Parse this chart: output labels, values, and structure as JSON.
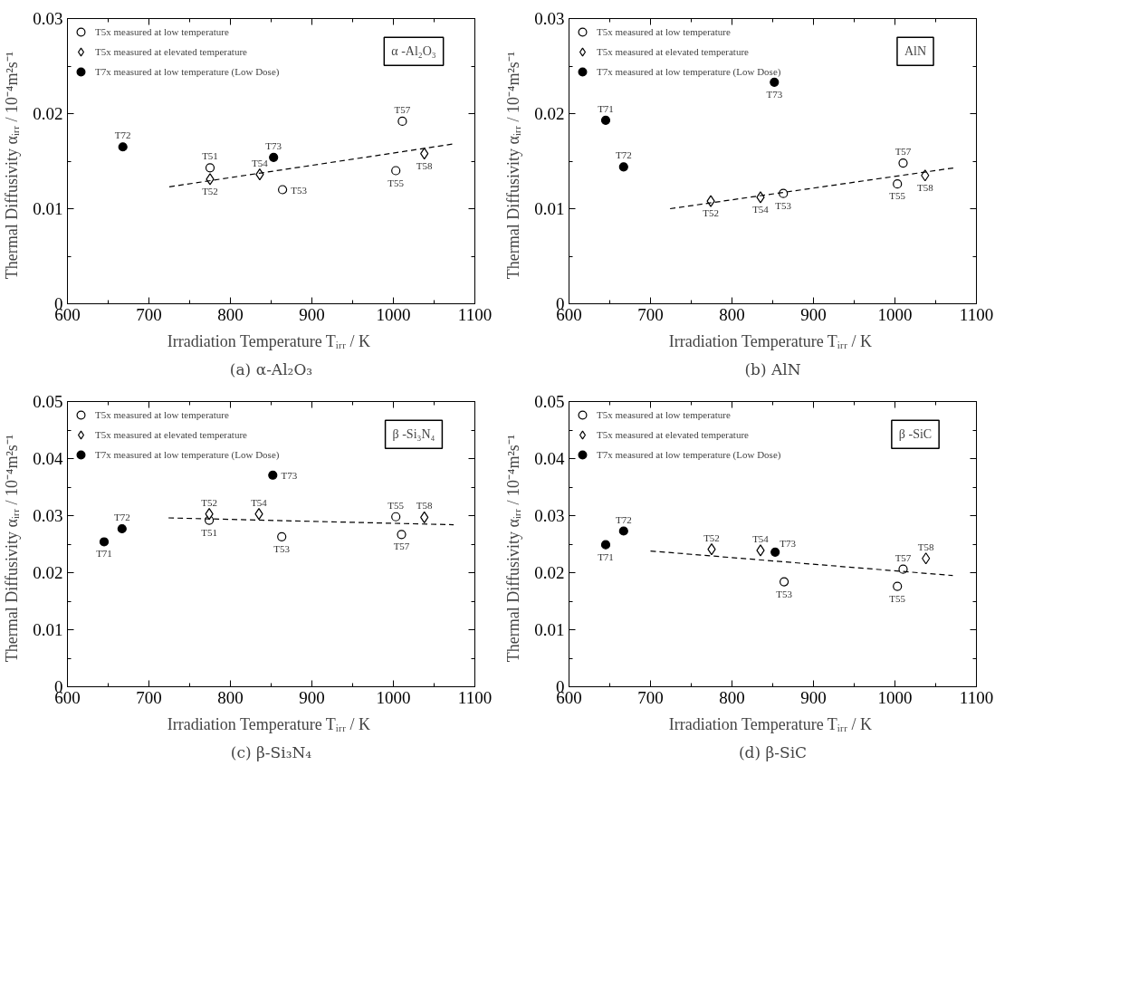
{
  "chart_data": [
    {
      "type": "scatter",
      "title": "(a) α-Al₂O₃",
      "xlabel": "Irradiation Temperature  Tᵢᵣᵣ / K",
      "ylabel": "Thermal Diffusivity  αᵢᵣᵣ  / 10⁻⁴m²s⁻¹",
      "xlim": [
        600,
        1100
      ],
      "ylim": [
        0,
        0.03
      ],
      "xticks": [
        600,
        {
          "value": 650,
          "label": null
        },
        700,
        {
          "value": 750,
          "label": null
        },
        800,
        {
          "value": 850,
          "label": null
        },
        900,
        {
          "value": 950,
          "label": null
        },
        1000,
        {
          "value": 1050,
          "label": null
        },
        1100
      ],
      "yticks": [
        0,
        {
          "value": 0.005,
          "label": null
        },
        0.01,
        {
          "value": 0.015,
          "label": null
        },
        0.02,
        {
          "value": 0.025,
          "label": null
        },
        0.03
      ],
      "legend": "top left",
      "series": [
        {
          "name": "T5x measured at low temperature",
          "color": "#ffffff",
          "marker": "circle",
          "x": [
            775,
            864,
            1003,
            1011
          ],
          "values": [
            0.0143,
            0.012,
            0.014,
            0.0192
          ]
        },
        {
          "name": "T5x measured at elevated temperature",
          "color": "#ffffff",
          "marker": "diamond",
          "x": [
            775,
            836,
            1038
          ],
          "values": [
            0.0131,
            0.0136,
            0.0158
          ]
        },
        {
          "name": "T7x measured at low temperature (Low Dose)",
          "color": "#000000",
          "marker": "circle",
          "x": [
            668,
            853
          ],
          "values": [
            0.0165,
            0.0154
          ]
        },
        {
          "type": "line",
          "color": "#000000",
          "line_style": "dashed",
          "marker": "none",
          "x": [
            725,
            1073
          ],
          "values": [
            0.0123,
            0.0168
          ]
        }
      ],
      "annotations": [
        "α -Al₂O₃",
        {
          "text": "T51",
          "x": 775,
          "y": 0.0143
        },
        {
          "text": "T53",
          "x": 864,
          "y": 0.012
        },
        {
          "text": "T55",
          "x": 1003,
          "y": 0.014
        },
        {
          "text": "T57",
          "x": 1011,
          "y": 0.0192
        },
        {
          "text": "T52",
          "x": 775,
          "y": 0.0131
        },
        {
          "text": "T54",
          "x": 836,
          "y": 0.0136
        },
        {
          "text": "T58",
          "x": 1038,
          "y": 0.0158
        },
        {
          "text": "T72",
          "x": 668,
          "y": 0.0165
        },
        {
          "text": "T73",
          "x": 853,
          "y": 0.0154
        }
      ]
    },
    {
      "type": "scatter",
      "title": "(b) AlN",
      "xlabel": "Irradiation Temperature  Tᵢᵣᵣ / K",
      "ylabel": "Thermal Diffusivity  αᵢᵣᵣ  / 10⁻⁴m²s⁻¹",
      "xlim": [
        600,
        1100
      ],
      "ylim": [
        0,
        0.03
      ],
      "xticks": [
        600,
        {
          "value": 650,
          "label": null
        },
        700,
        {
          "value": 750,
          "label": null
        },
        800,
        {
          "value": 850,
          "label": null
        },
        900,
        {
          "value": 950,
          "label": null
        },
        1000,
        {
          "value": 1050,
          "label": null
        },
        1100
      ],
      "yticks": [
        0,
        {
          "value": 0.005,
          "label": null
        },
        0.01,
        {
          "value": 0.015,
          "label": null
        },
        0.02,
        {
          "value": 0.025,
          "label": null
        },
        0.03
      ],
      "legend": "top left",
      "series": [
        {
          "name": "T5x measured at low temperature",
          "color": "#ffffff",
          "marker": "circle",
          "x": [
            863,
            1003,
            1010
          ],
          "values": [
            0.0116,
            0.0126,
            0.0148
          ]
        },
        {
          "name": "T5x measured at elevated temperature",
          "color": "#ffffff",
          "marker": "diamond",
          "x": [
            774,
            835,
            1037
          ],
          "values": [
            0.0108,
            0.0112,
            0.0135
          ]
        },
        {
          "name": "T7x measured at low temperature (Low Dose)",
          "color": "#000000",
          "marker": "circle",
          "x": [
            645,
            667,
            852
          ],
          "values": [
            0.0193,
            0.0144,
            0.0233
          ]
        },
        {
          "type": "line",
          "color": "#000000",
          "line_style": "dashed",
          "marker": "none",
          "x": [
            724,
            1073
          ],
          "values": [
            0.01,
            0.0143
          ]
        }
      ],
      "annotations": [
        "AlN",
        {
          "text": "T53",
          "x": 863,
          "y": 0.0116
        },
        {
          "text": "T55",
          "x": 1003,
          "y": 0.0126
        },
        {
          "text": "T57",
          "x": 1010,
          "y": 0.0148
        },
        {
          "text": "T52",
          "x": 774,
          "y": 0.0108
        },
        {
          "text": "T54",
          "x": 835,
          "y": 0.0112
        },
        {
          "text": "T58",
          "x": 1037,
          "y": 0.0135
        },
        {
          "text": "T71",
          "x": 645,
          "y": 0.0193
        },
        {
          "text": "T72",
          "x": 667,
          "y": 0.0144
        },
        {
          "text": "T73",
          "x": 852,
          "y": 0.0233
        }
      ]
    },
    {
      "type": "scatter",
      "title": "(c) β-Si₃N₄",
      "xlabel": "Irradiation Temperature  Tᵢᵣᵣ / K",
      "ylabel": "Thermal Diffusivity  αᵢᵣᵣ  / 10⁻⁴m²s⁻¹",
      "xlim": [
        600,
        1100
      ],
      "ylim": [
        0,
        0.05
      ],
      "xticks": [
        600,
        {
          "value": 650,
          "label": null
        },
        700,
        {
          "value": 750,
          "label": null
        },
        800,
        {
          "value": 850,
          "label": null
        },
        900,
        {
          "value": 950,
          "label": null
        },
        1000,
        {
          "value": 1050,
          "label": null
        },
        1100
      ],
      "yticks": [
        0,
        {
          "value": 0.005,
          "label": null
        },
        0.01,
        {
          "value": 0.015,
          "label": null
        },
        0.02,
        {
          "value": 0.025,
          "label": null
        },
        0.03,
        {
          "value": 0.035,
          "label": null
        },
        0.04,
        {
          "value": 0.045,
          "label": null
        },
        0.05
      ],
      "legend": "top left",
      "series": [
        {
          "name": "T5x measured at low temperature",
          "color": "#ffffff",
          "marker": "circle",
          "x": [
            774,
            863,
            1003,
            1010
          ],
          "values": [
            0.0292,
            0.0263,
            0.0298,
            0.0267
          ]
        },
        {
          "name": "T5x measured at elevated temperature",
          "color": "#ffffff",
          "marker": "diamond",
          "x": [
            774,
            835,
            1038
          ],
          "values": [
            0.0303,
            0.0303,
            0.0297
          ]
        },
        {
          "name": "T7x measured at low temperature (Low Dose)",
          "color": "#000000",
          "marker": "circle",
          "x": [
            645,
            667,
            852
          ],
          "values": [
            0.0254,
            0.0277,
            0.0371
          ]
        },
        {
          "type": "line",
          "color": "#000000",
          "line_style": "dashed",
          "marker": "none",
          "x": [
            724,
            1074
          ],
          "values": [
            0.0296,
            0.0284
          ]
        }
      ],
      "annotations": [
        "β -Si₃N₄",
        {
          "text": "T51",
          "x": 774,
          "y": 0.0292
        },
        {
          "text": "T53",
          "x": 863,
          "y": 0.0263
        },
        {
          "text": "T55",
          "x": 1003,
          "y": 0.0298
        },
        {
          "text": "T57",
          "x": 1010,
          "y": 0.0267
        },
        {
          "text": "T52",
          "x": 774,
          "y": 0.0303
        },
        {
          "text": "T54",
          "x": 835,
          "y": 0.0303
        },
        {
          "text": "T58",
          "x": 1038,
          "y": 0.0297
        },
        {
          "text": "T71",
          "x": 645,
          "y": 0.0254
        },
        {
          "text": "T72",
          "x": 667,
          "y": 0.0277
        },
        {
          "text": "T73",
          "x": 852,
          "y": 0.0371
        }
      ]
    },
    {
      "type": "scatter",
      "title": "(d) β-SiC",
      "xlabel": "Irradiation Temperature  Tᵢᵣᵣ / K",
      "ylabel": "Thermal Diffusivity  αᵢᵣᵣ  / 10⁻⁴m²s⁻¹",
      "xlim": [
        600,
        1100
      ],
      "ylim": [
        0,
        0.05
      ],
      "xticks": [
        600,
        {
          "value": 650,
          "label": null
        },
        700,
        {
          "value": 750,
          "label": null
        },
        800,
        {
          "value": 850,
          "label": null
        },
        900,
        {
          "value": 950,
          "label": null
        },
        1000,
        {
          "value": 1050,
          "label": null
        },
        1100
      ],
      "yticks": [
        0,
        {
          "value": 0.005,
          "label": null
        },
        0.01,
        {
          "value": 0.015,
          "label": null
        },
        0.02,
        {
          "value": 0.025,
          "label": null
        },
        0.03,
        {
          "value": 0.035,
          "label": null
        },
        0.04,
        {
          "value": 0.045,
          "label": null
        },
        0.05
      ],
      "legend": "top left",
      "series": [
        {
          "name": "T5x measured at low temperature",
          "color": "#ffffff",
          "marker": "circle",
          "x": [
            864,
            1003,
            1010
          ],
          "values": [
            0.0184,
            0.0176,
            0.0206
          ]
        },
        {
          "name": "T5x measured at elevated temperature",
          "color": "#ffffff",
          "marker": "diamond",
          "x": [
            775,
            835,
            1038
          ],
          "values": [
            0.0241,
            0.0239,
            0.0225
          ]
        },
        {
          "name": "T7x measured at low temperature (Low Dose)",
          "color": "#000000",
          "marker": "circle",
          "x": [
            645,
            667,
            853
          ],
          "values": [
            0.0249,
            0.0273,
            0.0236
          ]
        },
        {
          "type": "line",
          "color": "#000000",
          "line_style": "dashed",
          "marker": "none",
          "x": [
            700,
            1071
          ],
          "values": [
            0.0238,
            0.0195
          ]
        }
      ],
      "annotations": [
        "β -SiC",
        {
          "text": "T53",
          "x": 864,
          "y": 0.0184
        },
        {
          "text": "T55",
          "x": 1003,
          "y": 0.0176
        },
        {
          "text": "T57",
          "x": 1010,
          "y": 0.0206
        },
        {
          "text": "T52",
          "x": 775,
          "y": 0.0241
        },
        {
          "text": "T54",
          "x": 835,
          "y": 0.0239
        },
        {
          "text": "T58",
          "x": 1038,
          "y": 0.0225
        },
        {
          "text": "T71",
          "x": 645,
          "y": 0.0249
        },
        {
          "text": "T72",
          "x": 667,
          "y": 0.0273
        },
        {
          "text": "T73",
          "x": 853,
          "y": 0.0236
        }
      ]
    }
  ]
}
